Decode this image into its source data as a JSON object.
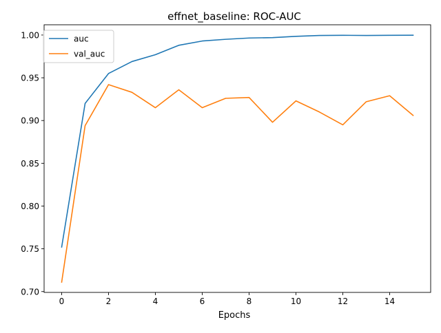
{
  "chart_data": {
    "type": "line",
    "title": "effnet_baseline: ROC-AUC",
    "xlabel": "Epochs",
    "ylabel": "",
    "xlim": [
      -0.75,
      15.75
    ],
    "ylim": [
      0.699,
      1.012
    ],
    "xticks": [
      0,
      2,
      4,
      6,
      8,
      10,
      12,
      14
    ],
    "xtick_labels": [
      "0",
      "2",
      "4",
      "6",
      "8",
      "10",
      "12",
      "14"
    ],
    "yticks": [
      0.7,
      0.75,
      0.8,
      0.85,
      0.9,
      0.95,
      1.0
    ],
    "ytick_labels": [
      "0.70",
      "0.75",
      "0.80",
      "0.85",
      "0.90",
      "0.95",
      "1.00"
    ],
    "grid": false,
    "legend_position": "upper-left",
    "x": [
      0,
      1,
      2,
      3,
      4,
      5,
      6,
      7,
      8,
      9,
      10,
      11,
      12,
      13,
      14,
      15
    ],
    "series": [
      {
        "name": "auc",
        "color": "#1f77b4",
        "values": [
          0.752,
          0.92,
          0.955,
          0.969,
          0.977,
          0.988,
          0.993,
          0.995,
          0.9965,
          0.997,
          0.9985,
          0.9995,
          0.9997,
          0.9995,
          0.9997,
          0.9998
        ]
      },
      {
        "name": "val_auc",
        "color": "#ff7f0e",
        "values": [
          0.711,
          0.894,
          0.942,
          0.933,
          0.915,
          0.936,
          0.915,
          0.926,
          0.927,
          0.898,
          0.923,
          0.91,
          0.895,
          0.922,
          0.929,
          0.906
        ]
      }
    ]
  }
}
